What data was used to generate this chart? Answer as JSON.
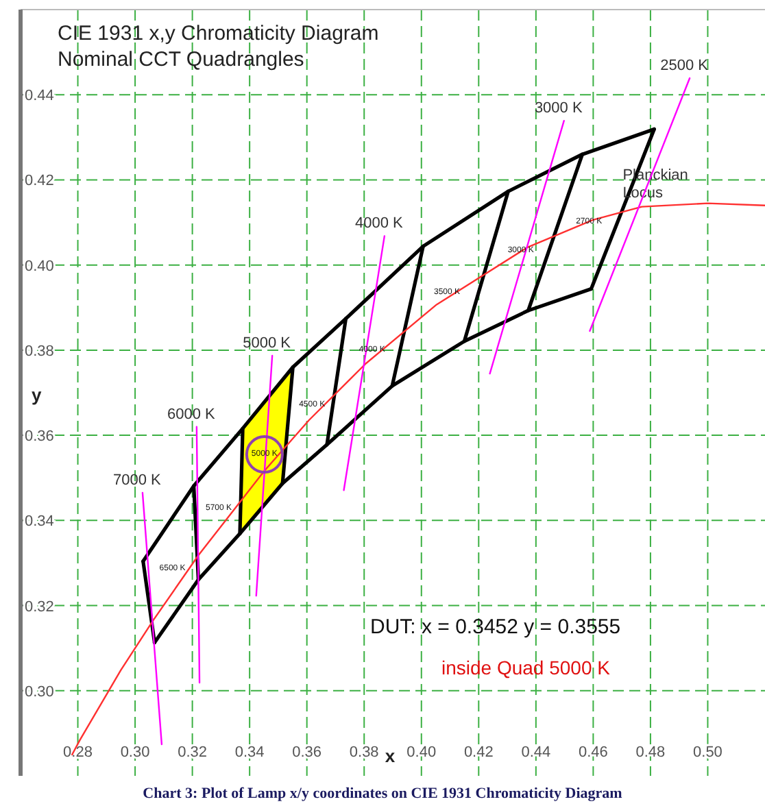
{
  "chart_data": {
    "type": "line",
    "title": "CIE 1931 x,y Chromaticity Diagram",
    "subtitle": "Nominal CCT Quadrangles",
    "xlabel": "x",
    "ylabel": "y",
    "xlim": [
      0.26,
      0.52
    ],
    "ylim": [
      0.28,
      0.46
    ],
    "xticks": [
      {
        "value": 0.28,
        "label": "0.28"
      },
      {
        "value": 0.3,
        "label": "0.30"
      },
      {
        "value": 0.32,
        "label": "0.32"
      },
      {
        "value": 0.34,
        "label": "0.34"
      },
      {
        "value": 0.36,
        "label": "0.36"
      },
      {
        "value": 0.38,
        "label": "0.38"
      },
      {
        "value": 0.4,
        "label": "0.40"
      },
      {
        "value": 0.42,
        "label": "0.42"
      },
      {
        "value": 0.44,
        "label": "0.44"
      },
      {
        "value": 0.46,
        "label": "0.46"
      },
      {
        "value": 0.48,
        "label": "0.48"
      },
      {
        "value": 0.5,
        "label": "0.50"
      }
    ],
    "yticks": [
      {
        "value": 0.3,
        "label": "0.30"
      },
      {
        "value": 0.32,
        "label": "0.32"
      },
      {
        "value": 0.34,
        "label": "0.34"
      },
      {
        "value": 0.36,
        "label": "0.36"
      },
      {
        "value": 0.38,
        "label": "0.38"
      },
      {
        "value": 0.4,
        "label": "0.40"
      },
      {
        "value": 0.42,
        "label": "0.42"
      },
      {
        "value": 0.44,
        "label": "0.44"
      }
    ],
    "grid": true,
    "series": [
      {
        "type": "area",
        "color": "#ffff00",
        "x": [
          0.3551,
          0.3376,
          0.3366,
          0.3515,
          0.3551
        ],
        "values": [
          0.376,
          0.3616,
          0.3369,
          0.3487,
          0.376
        ]
      },
      {
        "color": "#000000",
        "x": [
          0.3028,
          0.3205,
          0.3376,
          0.3551,
          0.3736,
          0.4006,
          0.4303,
          0.4562,
          0.4813
        ],
        "values": [
          0.3304,
          0.3481,
          0.3616,
          0.376,
          0.3874,
          0.4044,
          0.4173,
          0.426,
          0.4319
        ]
      },
      {
        "color": "#000000",
        "x": [
          0.3068,
          0.3221,
          0.3366,
          0.3515,
          0.367,
          0.3898,
          0.415,
          0.4373,
          0.4593
        ],
        "values": [
          0.3113,
          0.3261,
          0.3369,
          0.3487,
          0.3578,
          0.3716,
          0.3821,
          0.3893,
          0.3944
        ]
      },
      {
        "color": "#000000",
        "x": [
          0.3028,
          0.3068
        ],
        "values": [
          0.3304,
          0.3113
        ]
      },
      {
        "color": "#000000",
        "x": [
          0.3205,
          0.3221
        ],
        "values": [
          0.3481,
          0.3261
        ]
      },
      {
        "color": "#000000",
        "x": [
          0.3376,
          0.3366
        ],
        "values": [
          0.3616,
          0.3369
        ]
      },
      {
        "color": "#000000",
        "x": [
          0.3551,
          0.3515
        ],
        "values": [
          0.376,
          0.3487
        ]
      },
      {
        "color": "#000000",
        "x": [
          0.3736,
          0.367
        ],
        "values": [
          0.3874,
          0.3578
        ]
      },
      {
        "color": "#000000",
        "x": [
          0.4006,
          0.3898
        ],
        "values": [
          0.4044,
          0.3716
        ]
      },
      {
        "color": "#000000",
        "x": [
          0.4303,
          0.415
        ],
        "values": [
          0.4173,
          0.3821
        ]
      },
      {
        "color": "#000000",
        "x": [
          0.4562,
          0.4373
        ],
        "values": [
          0.426,
          0.3893
        ]
      },
      {
        "color": "#000000",
        "x": [
          0.4813,
          0.4593
        ],
        "values": [
          0.4319,
          0.3944
        ]
      },
      {
        "name": "Planckian Locus",
        "color": "#ff3030",
        "x": [
          0.278,
          0.2807,
          0.295,
          0.3064,
          0.3221,
          0.3451,
          0.3608,
          0.3805,
          0.4053,
          0.4369,
          0.4599,
          0.477,
          0.5,
          0.52
        ],
        "values": [
          0.285,
          0.2884,
          0.3048,
          0.3166,
          0.3318,
          0.3516,
          0.3636,
          0.3768,
          0.3907,
          0.4041,
          0.4106,
          0.4137,
          0.4145,
          0.414
        ]
      },
      {
        "name": "7000 K",
        "color": "#ff00ff",
        "x": [
          0.3026,
          0.3093
        ],
        "values": [
          0.3465,
          0.2874
        ]
      },
      {
        "name": "6000 K",
        "color": "#ff00ff",
        "x": [
          0.3215,
          0.3225
        ],
        "values": [
          0.362,
          0.3019
        ]
      },
      {
        "name": "5000 K",
        "color": "#ff00ff",
        "x": [
          0.3479,
          0.3423
        ],
        "values": [
          0.3787,
          0.3223
        ]
      },
      {
        "name": "4000 K",
        "color": "#ff00ff",
        "x": [
          0.3871,
          0.3729
        ],
        "values": [
          0.4068,
          0.3471
        ]
      },
      {
        "name": "3000 K",
        "color": "#ff00ff",
        "x": [
          0.4498,
          0.4239
        ],
        "values": [
          0.4339,
          0.3745
        ]
      },
      {
        "name": "2500 K",
        "color": "#ff00ff",
        "x": [
          0.4937,
          0.4588
        ],
        "values": [
          0.4439,
          0.3845
        ]
      },
      {
        "type": "scatter",
        "marker": "circle",
        "color": "#9040b0",
        "x": [
          0.3452
        ],
        "values": [
          0.3555
        ]
      }
    ],
    "annotations": [
      "DUT: x = 0.3452   y = 0.3555",
      "inside  Quad 5000 K",
      "Chart 3: Plot of Lamp x/y coordinates on CIE 1931 Chromaticity Diagram",
      "2700 K",
      "3000 K",
      "3500 K",
      "4000 K",
      "4500 K",
      "5000 K",
      "5700 K",
      "6500 K"
    ]
  }
}
